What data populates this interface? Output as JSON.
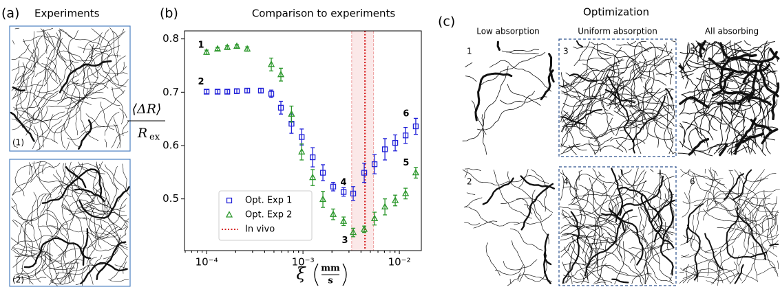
{
  "panels": {
    "a": {
      "label": "(a)",
      "title": "Experiments",
      "images": [
        "(1)",
        "(2)"
      ]
    },
    "b": {
      "label": "(b)"
    },
    "c": {
      "label": "(c)",
      "title": "Optimization",
      "columns": [
        "Low absorption",
        "Uniform absorption",
        "All absorbing"
      ],
      "images": [
        "1",
        "3",
        "5",
        "2",
        "4",
        "6"
      ]
    }
  },
  "chart_data": {
    "type": "scatter",
    "title": "Comparison to experiments",
    "x_label": {
      "symbol": "ξ",
      "numerator": "mm",
      "denominator": "s"
    },
    "y_label": {
      "numerator": "⟨ΔR⟩",
      "denominator": "R",
      "denominator_subscript": "ex"
    },
    "xscale": "log",
    "xlim": [
      5.9e-05,
      0.0169
    ],
    "ylim": [
      0.403,
      0.815
    ],
    "xticks": [
      {
        "value": 0.0001,
        "label": "10⁻⁴"
      },
      {
        "value": 0.001,
        "label": "10⁻³"
      },
      {
        "value": 0.01,
        "label": "10⁻²"
      }
    ],
    "yticks": [
      0.5,
      0.6,
      0.7,
      0.8
    ],
    "legend": "lower left",
    "series": [
      {
        "name": "Opt. Exp 1",
        "color": "#2020d8",
        "marker": "square",
        "x": [
          0.0001,
          0.00013,
          0.000164,
          0.000206,
          0.000264,
          0.000366,
          0.000469,
          0.00059,
          0.00076,
          0.00097,
          0.00126,
          0.00161,
          0.00206,
          0.00264,
          0.00332,
          0.00432,
          0.00553,
          0.00708,
          0.00906,
          0.0116,
          0.0148
        ],
        "values": [
          0.701,
          0.701,
          0.701,
          0.702,
          0.703,
          0.703,
          0.697,
          0.671,
          0.641,
          0.616,
          0.578,
          0.549,
          0.523,
          0.513,
          0.51,
          0.549,
          0.565,
          0.593,
          0.605,
          0.619,
          0.636
        ],
        "errors": [
          0.004,
          0.004,
          0.004,
          0.004,
          0.004,
          0.004,
          0.007,
          0.012,
          0.018,
          0.015,
          0.018,
          0.015,
          0.008,
          0.008,
          0.013,
          0.018,
          0.018,
          0.02,
          0.015,
          0.015,
          0.015
        ]
      },
      {
        "name": "Opt. Exp 2",
        "color": "#2a962a",
        "marker": "triangle",
        "x": [
          0.0001,
          0.00013,
          0.000164,
          0.000206,
          0.000264,
          0.000469,
          0.00059,
          0.00076,
          0.00097,
          0.00126,
          0.00161,
          0.00206,
          0.00264,
          0.00332,
          0.00432,
          0.00553,
          0.00708,
          0.00906,
          0.0116,
          0.0148
        ],
        "values": [
          0.775,
          0.781,
          0.784,
          0.786,
          0.781,
          0.752,
          0.733,
          0.659,
          0.588,
          0.54,
          0.499,
          0.471,
          0.458,
          0.437,
          0.443,
          0.463,
          0.485,
          0.497,
          0.51,
          0.549
        ],
        "errors": [
          0.004,
          0.003,
          0.003,
          0.003,
          0.004,
          0.012,
          0.012,
          0.015,
          0.015,
          0.015,
          0.015,
          0.01,
          0.008,
          0.008,
          0.006,
          0.012,
          0.015,
          0.01,
          0.01,
          0.01
        ]
      }
    ],
    "reference_line": {
      "name": "In vivo",
      "value": 0.0044,
      "color": "#d62020",
      "band": [
        0.0032,
        0.0054
      ]
    },
    "annotations": [
      "1",
      "2",
      "3",
      "4",
      "5",
      "6"
    ]
  }
}
